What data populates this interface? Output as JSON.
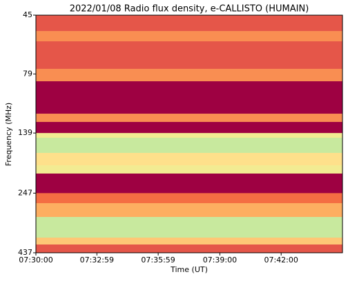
{
  "chart_data": {
    "type": "heatmap",
    "title": "2022/01/08  Radio flux density, e-CALLISTO (HUMAIN)",
    "xlabel": "Time (UT)",
    "ylabel": "Frequency (MHz)",
    "xlim": [
      27000,
      27900
    ],
    "xticks": [
      {
        "value": 27000,
        "label": "07:30:00"
      },
      {
        "value": 27179,
        "label": "07:32:59"
      },
      {
        "value": 27359,
        "label": "07:35:59"
      },
      {
        "value": 27540,
        "label": "07:39:00"
      },
      {
        "value": 27720,
        "label": "07:42:00"
      }
    ],
    "ylim": [
      45,
      437
    ],
    "y_log": true,
    "y_inverted": true,
    "yticks": [
      45,
      79,
      139,
      247,
      437
    ],
    "y_edges": [
      45,
      52.4,
      57.8,
      75.2,
      84.7,
      115.5,
      125,
      139,
      145.4,
      168.1,
      189.2,
      204.8,
      247,
      271.9,
      310.2,
      378,
      403.8,
      437
    ],
    "values": [
      0.15,
      0.25,
      0.15,
      0.25,
      0,
      0.25,
      0,
      0.45,
      0.55,
      0.4,
      0.45,
      0,
      0.2,
      0.3,
      0.55,
      0.35,
      0.15
    ],
    "colormap": [
      "#9e0142",
      "#d53e4f",
      "#f46d43",
      "#fdae61",
      "#fee08b",
      "#e6f598",
      "#abdda4",
      "#66c2a5"
    ],
    "colormap_range": [
      0,
      0.7
    ]
  }
}
